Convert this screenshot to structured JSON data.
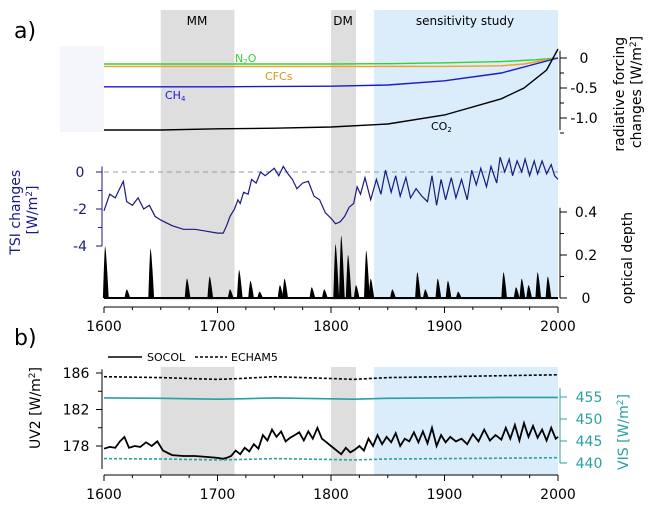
{
  "panel_a": {
    "label": "a)",
    "shading": [
      {
        "label": "MM",
        "x0": 1650,
        "x1": 1715,
        "color": "#dedede"
      },
      {
        "label": "DM",
        "x0": 1800,
        "x1": 1822,
        "color": "#dedede"
      },
      {
        "label": "sensitivity study",
        "x0": 1838,
        "x1": 2000,
        "color": "#dbecfb"
      }
    ]
  },
  "panel_b": {
    "label": "b)"
  },
  "colors": {
    "n2o": "#35d035",
    "cfcs": "#f0a020",
    "ch4": "#1a1ad0",
    "co2": "#000000",
    "tsi": "#1a1a80",
    "vis": "#2aa0a0",
    "gray_band": "#dedede",
    "blue_band": "#dbecfb"
  },
  "chart_data": [
    {
      "type": "line",
      "name": "radiative forcing",
      "ylabel": "radiative forcing changes [W/m²]",
      "ylim": [
        -1.25,
        0.15
      ],
      "yticks": [
        0,
        -0.5,
        -1.0
      ],
      "ytick_labels": [
        "0",
        "-0.5",
        "-1.0"
      ],
      "xlim": [
        1600,
        2000
      ],
      "series": [
        {
          "name": "N₂O",
          "color_key": "n2o",
          "x": [
            1600,
            1700,
            1800,
            1850,
            1900,
            1950,
            1980,
            2000
          ],
          "values": [
            -0.1,
            -0.1,
            -0.1,
            -0.095,
            -0.08,
            -0.06,
            -0.03,
            0.0
          ]
        },
        {
          "name": "CFCs",
          "color_key": "cfcs",
          "x": [
            1600,
            1900,
            1950,
            1970,
            1985,
            2000
          ],
          "values": [
            -0.14,
            -0.14,
            -0.13,
            -0.1,
            -0.05,
            0.0
          ]
        },
        {
          "name": "CH₄",
          "color_key": "ch4",
          "x": [
            1600,
            1700,
            1800,
            1850,
            1900,
            1950,
            1980,
            2000
          ],
          "values": [
            -0.48,
            -0.48,
            -0.47,
            -0.45,
            -0.38,
            -0.25,
            -0.1,
            0.0
          ]
        },
        {
          "name": "CO₂",
          "color_key": "co2",
          "x": [
            1600,
            1650,
            1700,
            1750,
            1800,
            1850,
            1900,
            1950,
            1970,
            1990,
            2000
          ],
          "values": [
            -1.2,
            -1.2,
            -1.18,
            -1.17,
            -1.15,
            -1.1,
            -0.95,
            -0.68,
            -0.5,
            -0.2,
            0.15
          ]
        }
      ]
    },
    {
      "type": "line",
      "name": "TSI changes",
      "ylabel": "TSI changes [W/m²]",
      "ylim": [
        -4,
        0.4
      ],
      "yticks": [
        0,
        -2,
        -4
      ],
      "ytick_labels": [
        "0",
        "-2",
        "-4"
      ],
      "reference_line": 0,
      "xlim": [
        1600,
        2000
      ],
      "series": [
        {
          "name": "TSI",
          "color_key": "tsi",
          "x": [
            1600,
            1605,
            1610,
            1613,
            1617,
            1620,
            1625,
            1630,
            1635,
            1640,
            1645,
            1650,
            1660,
            1670,
            1680,
            1690,
            1700,
            1705,
            1708,
            1711,
            1715,
            1718,
            1720,
            1723,
            1727,
            1730,
            1734,
            1738,
            1742,
            1746,
            1750,
            1754,
            1758,
            1762,
            1766,
            1770,
            1775,
            1780,
            1785,
            1790,
            1795,
            1800,
            1804,
            1808,
            1812,
            1816,
            1820,
            1823,
            1826,
            1830,
            1835,
            1840,
            1844,
            1848,
            1853,
            1857,
            1861,
            1866,
            1870,
            1875,
            1880,
            1885,
            1889,
            1893,
            1897,
            1901,
            1906,
            1910,
            1915,
            1920,
            1924,
            1928,
            1932,
            1937,
            1941,
            1946,
            1949,
            1953,
            1957,
            1960,
            1964,
            1968,
            1971,
            1975,
            1979,
            1982,
            1986,
            1990,
            1994,
            1997,
            2000
          ],
          "values": [
            -2.1,
            -1.2,
            -1.4,
            -1.0,
            -0.5,
            -1.6,
            -1.8,
            -1.4,
            -2.0,
            -1.8,
            -2.4,
            -2.6,
            -2.9,
            -3.1,
            -3.1,
            -3.2,
            -3.3,
            -3.3,
            -2.9,
            -2.4,
            -2.0,
            -1.5,
            -1.7,
            -1.1,
            -1.2,
            -0.4,
            -0.6,
            0.0,
            -0.2,
            0.0,
            0.2,
            -0.2,
            0.3,
            -0.1,
            -0.4,
            -0.9,
            -0.6,
            -0.5,
            -1.3,
            -1.5,
            -2.2,
            -2.5,
            -2.8,
            -2.7,
            -2.4,
            -1.9,
            -1.7,
            -0.8,
            -1.2,
            -0.3,
            -1.5,
            -0.4,
            -1.2,
            0.1,
            -1.1,
            -0.2,
            -1.3,
            -0.3,
            -1.4,
            -0.9,
            -1.3,
            -1.6,
            -0.2,
            -1.8,
            -0.4,
            -1.5,
            -0.3,
            -1.4,
            -0.4,
            -1.5,
            0.1,
            -0.7,
            0.2,
            -0.8,
            0.3,
            -0.6,
            0.8,
            0.0,
            0.7,
            -0.2,
            0.6,
            0.0,
            0.7,
            -0.2,
            0.6,
            -0.1,
            0.6,
            -0.1,
            0.4,
            -0.2,
            -0.4
          ]
        }
      ]
    },
    {
      "type": "area",
      "name": "optical depth",
      "ylabel": "optical depth",
      "ylim": [
        0,
        0.45
      ],
      "yticks": [
        0,
        0.2,
        0.4
      ],
      "ytick_labels": [
        "0",
        "0.2",
        "0.4"
      ],
      "xlim": [
        1600,
        2000
      ],
      "spikes": [
        {
          "x": 1601,
          "value": 0.24
        },
        {
          "x": 1620,
          "value": 0.04
        },
        {
          "x": 1641,
          "value": 0.23
        },
        {
          "x": 1673,
          "value": 0.09
        },
        {
          "x": 1693,
          "value": 0.1
        },
        {
          "x": 1711,
          "value": 0.04
        },
        {
          "x": 1719,
          "value": 0.13
        },
        {
          "x": 1729,
          "value": 0.08
        },
        {
          "x": 1737,
          "value": 0.03
        },
        {
          "x": 1755,
          "value": 0.06
        },
        {
          "x": 1759,
          "value": 0.09
        },
        {
          "x": 1783,
          "value": 0.05
        },
        {
          "x": 1794,
          "value": 0.04
        },
        {
          "x": 1804,
          "value": 0.25
        },
        {
          "x": 1809,
          "value": 0.29
        },
        {
          "x": 1815,
          "value": 0.2
        },
        {
          "x": 1822,
          "value": 0.06
        },
        {
          "x": 1831,
          "value": 0.22
        },
        {
          "x": 1835,
          "value": 0.09
        },
        {
          "x": 1854,
          "value": 0.04
        },
        {
          "x": 1876,
          "value": 0.12
        },
        {
          "x": 1883,
          "value": 0.04
        },
        {
          "x": 1894,
          "value": 0.09
        },
        {
          "x": 1903,
          "value": 0.08
        },
        {
          "x": 1912,
          "value": 0.03
        },
        {
          "x": 1952,
          "value": 0.12
        },
        {
          "x": 1963,
          "value": 0.05
        },
        {
          "x": 1968,
          "value": 0.09
        },
        {
          "x": 1974,
          "value": 0.06
        },
        {
          "x": 1982,
          "value": 0.12
        },
        {
          "x": 1991,
          "value": 0.1
        }
      ]
    },
    {
      "type": "line",
      "name": "UV2 and VIS",
      "xlim": [
        1600,
        2000
      ],
      "xticks": [
        1600,
        1700,
        1800,
        1900,
        2000
      ],
      "xtick_labels": [
        "1600",
        "1700",
        "1800",
        "1900",
        "2000"
      ],
      "legend": {
        "placement": "top",
        "entries": [
          {
            "label": "SOCOL",
            "style": "solid"
          },
          {
            "label": "ECHAM5",
            "style": "dashed"
          }
        ]
      },
      "left_axis": {
        "ylabel": "UV2 [W/m²]",
        "ylim": [
          175,
          187
        ],
        "yticks": [
          178,
          182,
          186
        ],
        "ytick_labels": [
          "178",
          "182",
          "186"
        ]
      },
      "right_axis": {
        "ylabel": "VIS [W/m²]",
        "ylim": [
          438,
          458.8
        ],
        "yticks": [
          440,
          445,
          450,
          455
        ],
        "ytick_labels": [
          "440",
          "445",
          "450",
          "455"
        ]
      },
      "series": [
        {
          "name": "SOCOL",
          "axis": "left",
          "style": "solid",
          "color_key": "co2",
          "x": [
            1600,
            1605,
            1610,
            1614,
            1618,
            1622,
            1627,
            1632,
            1637,
            1642,
            1647,
            1652,
            1660,
            1670,
            1680,
            1690,
            1700,
            1705,
            1708,
            1712,
            1716,
            1720,
            1724,
            1728,
            1732,
            1736,
            1740,
            1744,
            1748,
            1752,
            1756,
            1760,
            1764,
            1768,
            1772,
            1776,
            1780,
            1784,
            1788,
            1792,
            1796,
            1800,
            1805,
            1809,
            1813,
            1817,
            1821,
            1825,
            1829,
            1833,
            1837,
            1841,
            1845,
            1849,
            1853,
            1857,
            1861,
            1865,
            1869,
            1873,
            1877,
            1881,
            1885,
            1889,
            1893,
            1897,
            1901,
            1905,
            1910,
            1915,
            1920,
            1925,
            1930,
            1935,
            1940,
            1945,
            1950,
            1954,
            1958,
            1962,
            1966,
            1970,
            1974,
            1978,
            1982,
            1986,
            1990,
            1994,
            1998,
            2000
          ],
          "values": [
            177.7,
            177.9,
            177.8,
            178.5,
            179.0,
            177.8,
            178.0,
            177.9,
            178.4,
            178.0,
            178.5,
            177.5,
            177.0,
            176.9,
            176.9,
            176.8,
            176.7,
            176.6,
            176.7,
            176.9,
            177.5,
            177.1,
            177.8,
            177.4,
            178.2,
            177.7,
            179.2,
            178.6,
            179.8,
            179.0,
            179.6,
            178.5,
            178.9,
            179.2,
            179.5,
            178.6,
            179.6,
            178.8,
            180.0,
            178.8,
            178.4,
            178.0,
            177.5,
            177.1,
            177.8,
            177.3,
            177.6,
            178.0,
            177.5,
            178.8,
            178.0,
            179.2,
            178.2,
            179.0,
            178.4,
            179.4,
            178.0,
            178.8,
            178.5,
            179.5,
            178.4,
            179.6,
            178.3,
            180.0,
            178.0,
            179.2,
            178.4,
            179.0,
            178.5,
            178.8,
            178.2,
            179.3,
            178.5,
            179.8,
            178.6,
            179.2,
            178.7,
            180.0,
            178.8,
            180.3,
            178.6,
            180.5,
            179.0,
            180.2,
            178.9,
            179.8,
            178.6,
            180.0,
            178.8,
            179.0
          ]
        },
        {
          "name": "ECHAM5",
          "axis": "left",
          "style": "dashed",
          "color_key": "co2",
          "x": [
            1600,
            1650,
            1700,
            1720,
            1750,
            1800,
            1820,
            1850,
            1900,
            1950,
            2000
          ],
          "values": [
            185.6,
            185.5,
            185.3,
            185.4,
            185.6,
            185.4,
            185.3,
            185.5,
            185.6,
            185.7,
            185.8
          ]
        },
        {
          "name": "SOCOL VIS",
          "axis": "right",
          "style": "solid",
          "color_key": "vis",
          "x": [
            1600,
            1650,
            1700,
            1720,
            1750,
            1800,
            1820,
            1850,
            1900,
            1950,
            2000
          ],
          "values": [
            454.8,
            454.7,
            454.5,
            454.6,
            454.8,
            454.6,
            454.5,
            454.7,
            454.8,
            454.9,
            454.9
          ]
        },
        {
          "name": "ECHAM5 VIS",
          "axis": "right",
          "style": "dashed",
          "color_key": "vis",
          "x": [
            1600,
            1650,
            1700,
            1720,
            1750,
            1800,
            1820,
            1850,
            1900,
            1950,
            2000
          ],
          "values": [
            441.0,
            440.9,
            440.7,
            440.8,
            441.0,
            440.8,
            440.7,
            440.9,
            441.0,
            441.1,
            441.2
          ]
        }
      ]
    }
  ]
}
